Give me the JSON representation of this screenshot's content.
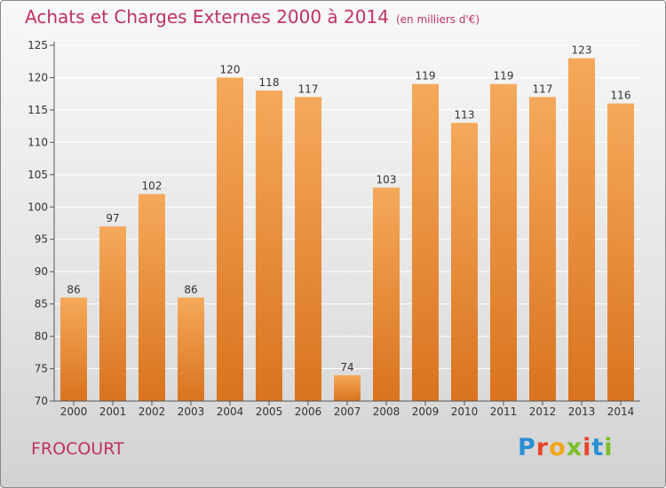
{
  "header": {
    "title": "Achats et Charges Externes 2000 à 2014",
    "subtitle": "(en milliers d'€)"
  },
  "footer": {
    "commune": "FROCOURT",
    "logo": "Proxiti"
  },
  "colors": {
    "bar_light": "#f5a95a",
    "bar_dark": "#d9731f",
    "title": "#c0325d"
  },
  "chart_data": {
    "type": "bar",
    "title": "Achats et Charges Externes 2000 à 2014",
    "subtitle": "(en milliers d'€)",
    "categories": [
      "2000",
      "2001",
      "2002",
      "2003",
      "2004",
      "2005",
      "2006",
      "2007",
      "2008",
      "2009",
      "2010",
      "2011",
      "2012",
      "2013",
      "2014"
    ],
    "values": [
      86,
      97,
      102,
      86,
      120,
      118,
      117,
      74,
      103,
      119,
      113,
      119,
      117,
      123,
      116
    ],
    "ylim": [
      70,
      125
    ],
    "yticks": [
      70,
      75,
      80,
      85,
      90,
      95,
      100,
      105,
      110,
      115,
      120,
      125
    ],
    "grid": true,
    "xlabel": "",
    "ylabel": ""
  }
}
